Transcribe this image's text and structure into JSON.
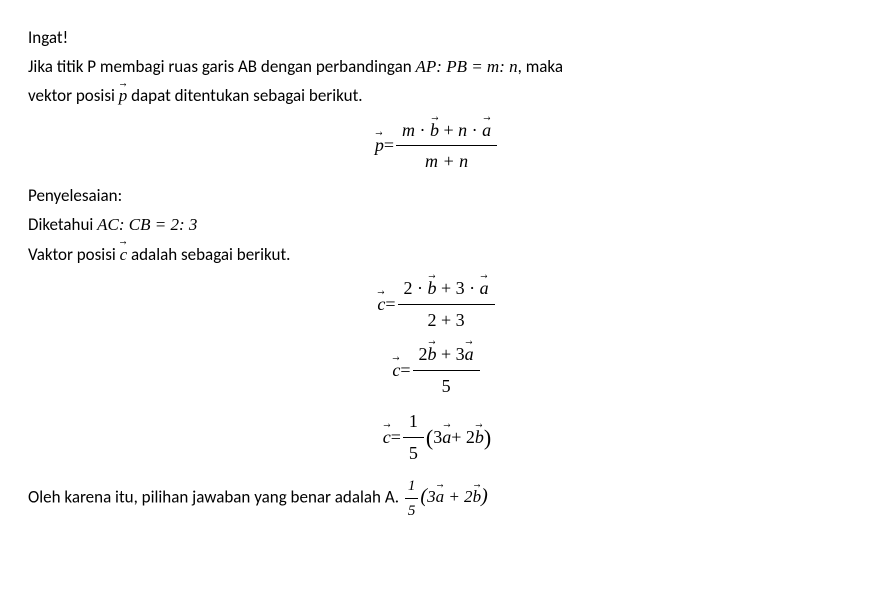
{
  "intro": {
    "heading": "Ingat!",
    "line1_part1": "Jika titik P membagi ruas garis AB dengan perbandingan ",
    "line1_math": "AP: PB = m: n",
    "line1_part2": ", maka",
    "line2_part1": "vektor posisi ",
    "line2_vec": "p",
    "line2_part2": " dapat ditentukan sebagai berikut."
  },
  "formula1": {
    "lhs_vec": "p",
    "eq": "=",
    "num_m": "m",
    "num_dot1": " · ",
    "num_b": "b",
    "num_plus": " + ",
    "num_n": "n",
    "num_dot2": " · ",
    "num_a": "a",
    "den": "m + n"
  },
  "solution": {
    "heading": "Penyelesaian:",
    "given_part1": "Diketahui ",
    "given_math": "AC: CB = 2: 3",
    "line3_part1": "Vaktor posisi ",
    "line3_vec": "c",
    "line3_part2": " adalah sebagai berikut."
  },
  "eq1": {
    "lhs_vec": "c",
    "eq": "=",
    "num_2": "2 · ",
    "num_b": "b",
    "num_plus": " + 3 · ",
    "num_a": "a",
    "den": "2 + 3"
  },
  "eq2": {
    "lhs_vec": "c",
    "eq": "=",
    "num_2": "2",
    "num_b": "b",
    "num_plus": " + 3",
    "num_a": "a",
    "den": "5"
  },
  "eq3": {
    "lhs_vec": "c",
    "eq": "=",
    "frac_num": "1",
    "frac_den": "5",
    "open": "(",
    "term1_coef": "3",
    "term1_vec": "a",
    "plus": " + 2",
    "term2_vec": "b",
    "close": ")"
  },
  "conclusion": {
    "text": "Oleh karena itu, pilihan jawaban yang benar adalah A. ",
    "frac_num": "1",
    "frac_den": "5",
    "open": "(",
    "term1_coef": "3",
    "term1_vec": "a",
    "plus": " + 2",
    "term2_vec": "b",
    "close": ")"
  }
}
